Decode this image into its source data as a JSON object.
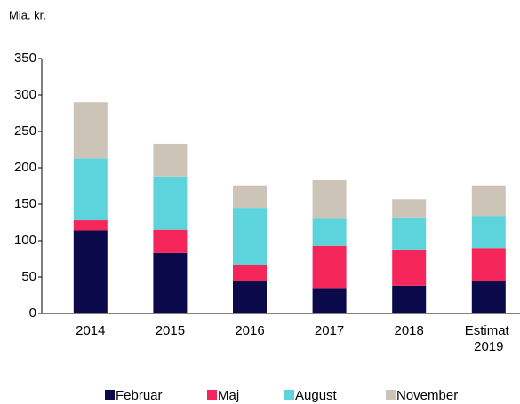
{
  "chart_data": {
    "type": "stacked_bar",
    "y_label": "Mia. kr.",
    "categories": [
      "2014",
      "2015",
      "2016",
      "2017",
      "2018",
      "Estimat 2019"
    ],
    "series": [
      {
        "name": "Februar",
        "color": "#0a0a4a",
        "values": [
          114,
          83,
          45,
          35,
          38,
          44
        ]
      },
      {
        "name": "Maj",
        "color": "#f5265a",
        "values": [
          14,
          32,
          22,
          58,
          50,
          46
        ]
      },
      {
        "name": "August",
        "color": "#5dd4dc",
        "values": [
          85,
          73,
          78,
          37,
          44,
          44
        ]
      },
      {
        "name": "November",
        "color": "#cdc4b8",
        "values": [
          77,
          45,
          31,
          53,
          25,
          42
        ]
      }
    ],
    "ylim": [
      0,
      350
    ],
    "yticks": [
      0,
      50,
      100,
      150,
      200,
      250,
      300,
      350
    ],
    "grid": false,
    "legend": "bottom"
  }
}
